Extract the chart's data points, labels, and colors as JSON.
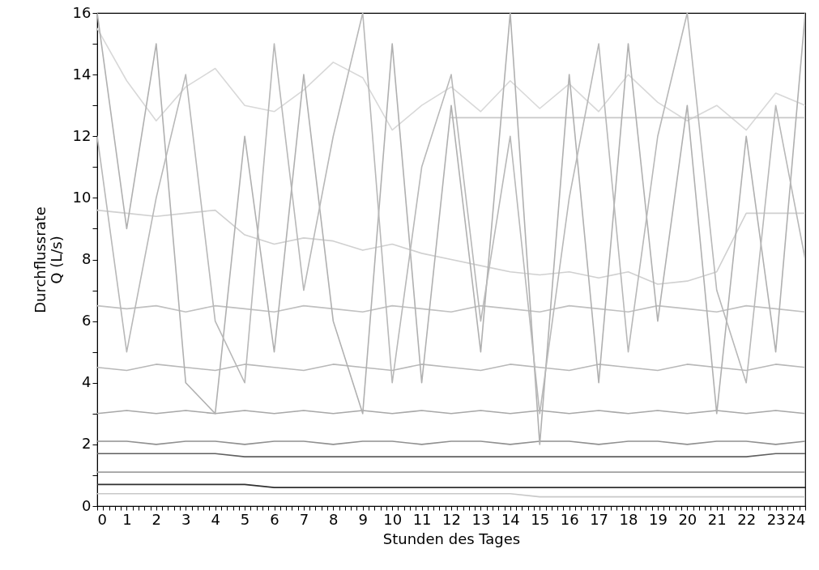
{
  "chart_data": {
    "type": "line",
    "xlabel": "Stunden des Tages",
    "ylabel": "Durchflussrate\nQ (L/s)",
    "x": [
      0,
      1,
      2,
      3,
      4,
      5,
      6,
      7,
      8,
      9,
      10,
      11,
      12,
      13,
      14,
      15,
      16,
      17,
      18,
      19,
      20,
      21,
      22,
      23,
      24
    ],
    "series": [
      {
        "color": "#d8d8d8",
        "values": [
          15.5,
          13.8,
          12.5,
          13.6,
          14.2,
          13.0,
          12.8,
          13.5,
          14.4,
          13.9,
          12.2,
          13.0,
          13.6,
          12.8,
          13.8,
          12.9,
          13.7,
          12.8,
          14.0,
          13.1,
          12.5,
          13.0,
          12.2,
          13.4,
          13.0
        ]
      },
      {
        "color": "#c8c8c8",
        "values": [
          null,
          null,
          null,
          null,
          null,
          null,
          null,
          null,
          null,
          null,
          null,
          null,
          12.6,
          12.6,
          12.6,
          12.6,
          12.6,
          12.6,
          12.6,
          12.6,
          12.6,
          12.6,
          12.6,
          12.6,
          12.6
        ]
      },
      {
        "color": "#d0d0d0",
        "values": [
          9.6,
          9.5,
          9.4,
          9.5,
          9.6,
          8.8,
          8.5,
          8.7,
          8.6,
          8.3,
          8.5,
          8.2,
          8.0,
          7.8,
          7.6,
          7.5,
          7.6,
          7.4,
          7.6,
          7.2,
          7.3,
          7.6,
          9.5,
          9.5,
          9.5
        ]
      },
      {
        "color": "#c0c0c0",
        "values": [
          6.5,
          6.4,
          6.5,
          6.3,
          6.5,
          6.4,
          6.3,
          6.5,
          6.4,
          6.3,
          6.5,
          6.4,
          6.3,
          6.5,
          6.4,
          6.3,
          6.5,
          6.4,
          6.3,
          6.5,
          6.4,
          6.3,
          6.5,
          6.4,
          6.3
        ]
      },
      {
        "color": "#b8b8b8",
        "values": [
          4.5,
          4.4,
          4.6,
          4.5,
          4.4,
          4.6,
          4.5,
          4.4,
          4.6,
          4.5,
          4.4,
          4.6,
          4.5,
          4.4,
          4.6,
          4.5,
          4.4,
          4.6,
          4.5,
          4.4,
          4.6,
          4.5,
          4.4,
          4.6,
          4.5
        ]
      },
      {
        "color": "#a8a8a8",
        "values": [
          3.0,
          3.1,
          3.0,
          3.1,
          3.0,
          3.1,
          3.0,
          3.1,
          3.0,
          3.1,
          3.0,
          3.1,
          3.0,
          3.1,
          3.0,
          3.1,
          3.0,
          3.1,
          3.0,
          3.1,
          3.0,
          3.1,
          3.0,
          3.1,
          3.0
        ]
      },
      {
        "color": "#909090",
        "values": [
          2.1,
          2.1,
          2.0,
          2.1,
          2.1,
          2.0,
          2.1,
          2.1,
          2.0,
          2.1,
          2.1,
          2.0,
          2.1,
          2.1,
          2.0,
          2.1,
          2.1,
          2.0,
          2.1,
          2.1,
          2.0,
          2.1,
          2.1,
          2.0,
          2.1
        ]
      },
      {
        "color": "#606060",
        "values": [
          1.7,
          1.7,
          1.7,
          1.7,
          1.7,
          1.6,
          1.6,
          1.6,
          1.6,
          1.6,
          1.6,
          1.6,
          1.6,
          1.6,
          1.6,
          1.6,
          1.6,
          1.6,
          1.6,
          1.6,
          1.6,
          1.6,
          1.6,
          1.7,
          1.7
        ]
      },
      {
        "color": "#a0a0a0",
        "values": [
          1.1,
          1.1,
          1.1,
          1.1,
          1.1,
          1.1,
          1.1,
          1.1,
          1.1,
          1.1,
          1.1,
          1.1,
          1.1,
          1.1,
          1.1,
          1.1,
          1.1,
          1.1,
          1.1,
          1.1,
          1.1,
          1.1,
          1.1,
          1.1,
          1.1
        ]
      },
      {
        "color": "#303030",
        "values": [
          0.7,
          0.7,
          0.7,
          0.7,
          0.7,
          0.7,
          0.6,
          0.6,
          0.6,
          0.6,
          0.6,
          0.6,
          0.6,
          0.6,
          0.6,
          0.6,
          0.6,
          0.6,
          0.6,
          0.6,
          0.6,
          0.6,
          0.6,
          0.6,
          0.6
        ]
      },
      {
        "color": "#c8c8c8",
        "values": [
          0.4,
          0.4,
          0.4,
          0.4,
          0.4,
          0.4,
          0.4,
          0.4,
          0.4,
          0.4,
          0.4,
          0.4,
          0.4,
          0.4,
          0.4,
          0.3,
          0.3,
          0.3,
          0.3,
          0.3,
          0.3,
          0.3,
          0.3,
          0.3,
          0.3
        ]
      },
      {
        "color": "#b0b0b0",
        "values": [
          16,
          9,
          15,
          4,
          3,
          12,
          5,
          14,
          6,
          3,
          15,
          4,
          13,
          5,
          16,
          2,
          14,
          4,
          15,
          6,
          13,
          3,
          12,
          5,
          16
        ]
      },
      {
        "color": "#b8b8b8",
        "values": [
          12,
          5,
          10,
          14,
          6,
          4,
          15,
          7,
          12,
          16,
          4,
          11,
          14,
          6,
          12,
          3,
          10,
          15,
          5,
          12,
          16,
          7,
          4,
          13,
          8
        ]
      }
    ],
    "xlim": [
      0,
      24
    ],
    "xticks": [
      0,
      {
        "value": 0.2,
        "label": null
      },
      {
        "value": 0.4,
        "label": null
      },
      {
        "value": 0.6,
        "label": null
      },
      {
        "value": 0.8,
        "label": null
      },
      1,
      {
        "value": 1.2,
        "label": null
      },
      {
        "value": 1.4,
        "label": null
      },
      {
        "value": 1.6,
        "label": null
      },
      {
        "value": 1.8,
        "label": null
      },
      2,
      {
        "value": 2.2,
        "label": null
      },
      {
        "value": 2.4,
        "label": null
      },
      {
        "value": 2.6,
        "label": null
      },
      {
        "value": 2.8,
        "label": null
      },
      3,
      {
        "value": 3.2,
        "label": null
      },
      {
        "value": 3.4,
        "label": null
      },
      {
        "value": 3.6,
        "label": null
      },
      {
        "value": 3.8,
        "label": null
      },
      4,
      {
        "value": 4.2,
        "label": null
      },
      {
        "value": 4.4,
        "label": null
      },
      {
        "value": 4.6,
        "label": null
      },
      {
        "value": 4.8,
        "label": null
      },
      5,
      {
        "value": 5.2,
        "label": null
      },
      {
        "value": 5.4,
        "label": null
      },
      {
        "value": 5.6,
        "label": null
      },
      {
        "value": 5.8,
        "label": null
      },
      6,
      {
        "value": 6.2,
        "label": null
      },
      {
        "value": 6.4,
        "label": null
      },
      {
        "value": 6.6,
        "label": null
      },
      {
        "value": 6.8,
        "label": null
      },
      7,
      {
        "value": 7.2,
        "label": null
      },
      {
        "value": 7.4,
        "label": null
      },
      {
        "value": 7.6,
        "label": null
      },
      {
        "value": 7.8,
        "label": null
      },
      8,
      {
        "value": 8.2,
        "label": null
      },
      {
        "value": 8.4,
        "label": null
      },
      {
        "value": 8.6,
        "label": null
      },
      {
        "value": 8.8,
        "label": null
      },
      9,
      {
        "value": 9.2,
        "label": null
      },
      {
        "value": 9.4,
        "label": null
      },
      {
        "value": 9.6,
        "label": null
      },
      {
        "value": 9.8,
        "label": null
      },
      10,
      {
        "value": 10.2,
        "label": null
      },
      {
        "value": 10.4,
        "label": null
      },
      {
        "value": 10.6,
        "label": null
      },
      {
        "value": 10.8,
        "label": null
      },
      11,
      {
        "value": 11.2,
        "label": null
      },
      {
        "value": 11.4,
        "label": null
      },
      {
        "value": 11.6,
        "label": null
      },
      {
        "value": 11.8,
        "label": null
      },
      12,
      {
        "value": 12.2,
        "label": null
      },
      {
        "value": 12.4,
        "label": null
      },
      {
        "value": 12.6,
        "label": null
      },
      {
        "value": 12.8,
        "label": null
      },
      13,
      {
        "value": 13.2,
        "label": null
      },
      {
        "value": 13.4,
        "label": null
      },
      {
        "value": 13.6,
        "label": null
      },
      {
        "value": 13.8,
        "label": null
      },
      14,
      {
        "value": 14.2,
        "label": null
      },
      {
        "value": 14.4,
        "label": null
      },
      {
        "value": 14.6,
        "label": null
      },
      {
        "value": 14.8,
        "label": null
      },
      15,
      {
        "value": 15.2,
        "label": null
      },
      {
        "value": 15.4,
        "label": null
      },
      {
        "value": 15.6,
        "label": null
      },
      {
        "value": 15.8,
        "label": null
      },
      16,
      {
        "value": 16.2,
        "label": null
      },
      {
        "value": 16.4,
        "label": null
      },
      {
        "value": 16.6,
        "label": null
      },
      {
        "value": 16.8,
        "label": null
      },
      17,
      {
        "value": 17.2,
        "label": null
      },
      {
        "value": 17.4,
        "label": null
      },
      {
        "value": 17.6,
        "label": null
      },
      {
        "value": 17.8,
        "label": null
      },
      18,
      {
        "value": 18.2,
        "label": null
      },
      {
        "value": 18.4,
        "label": null
      },
      {
        "value": 18.6,
        "label": null
      },
      {
        "value": 18.8,
        "label": null
      },
      19,
      {
        "value": 19.2,
        "label": null
      },
      {
        "value": 19.4,
        "label": null
      },
      {
        "value": 19.6,
        "label": null
      },
      {
        "value": 19.8,
        "label": null
      },
      20,
      {
        "value": 20.2,
        "label": null
      },
      {
        "value": 20.4,
        "label": null
      },
      {
        "value": 20.6,
        "label": null
      },
      {
        "value": 20.8,
        "label": null
      },
      21,
      {
        "value": 21.2,
        "label": null
      },
      {
        "value": 21.4,
        "label": null
      },
      {
        "value": 21.6,
        "label": null
      },
      {
        "value": 21.8,
        "label": null
      },
      22,
      {
        "value": 22.2,
        "label": null
      },
      {
        "value": 22.4,
        "label": null
      },
      {
        "value": 22.6,
        "label": null
      },
      {
        "value": 22.8,
        "label": null
      },
      23,
      {
        "value": 23.2,
        "label": null
      },
      {
        "value": 23.4,
        "label": null
      },
      {
        "value": 23.6,
        "label": null
      },
      {
        "value": 23.8,
        "label": null
      },
      24
    ],
    "ylim": [
      0,
      16
    ],
    "yticks": [
      0,
      {
        "value": 1,
        "label": null
      },
      2,
      {
        "value": 3,
        "label": null
      },
      4,
      {
        "value": 5,
        "label": null
      },
      6,
      {
        "value": 7,
        "label": null
      },
      8,
      {
        "value": 9,
        "label": null
      },
      10,
      {
        "value": 11,
        "label": null
      },
      12,
      {
        "value": 13,
        "label": null
      },
      14,
      {
        "value": 15,
        "label": null
      },
      16
    ],
    "marker": "none",
    "line_style": "solid"
  }
}
